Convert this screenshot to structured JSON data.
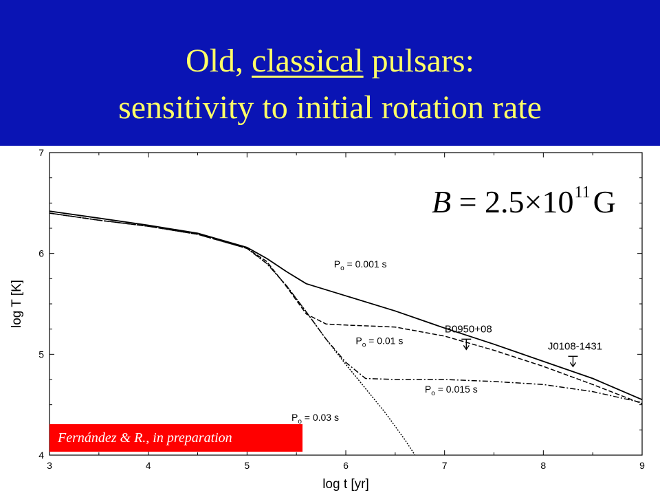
{
  "header": {
    "title_line1_pre": "Old, ",
    "title_line1_underlined": "classical",
    "title_line1_post": " pulsars:",
    "title_line2": "sensitivity to initial rotation rate"
  },
  "formula": {
    "symbol": "B",
    "equals": " = 2.5×10",
    "exponent": "11",
    "unit": "G"
  },
  "credit": "Fernández & R., in preparation",
  "colors": {
    "banner": "#0a14b4",
    "title": "#ffff66",
    "credit_bg": "#ff0000",
    "credit_text": "#ffffff"
  },
  "chart_data": {
    "type": "line",
    "xlabel": "log t [yr]",
    "ylabel": "log T [K]",
    "xlim": [
      3,
      9
    ],
    "ylim": [
      4,
      7
    ],
    "x_ticks": [
      3,
      4,
      5,
      6,
      7,
      8,
      9
    ],
    "y_ticks": [
      4,
      5,
      6,
      7
    ],
    "grid": false,
    "series": [
      {
        "name": "Po = 0.001 s",
        "style": "solid",
        "x": [
          3,
          3.5,
          4,
          4.5,
          5,
          5.2,
          5.4,
          5.6,
          6,
          6.5,
          7,
          7.5,
          8,
          8.5,
          9
        ],
        "y": [
          6.42,
          6.35,
          6.28,
          6.2,
          6.06,
          5.95,
          5.82,
          5.7,
          5.58,
          5.43,
          5.26,
          5.1,
          4.93,
          4.76,
          4.55
        ]
      },
      {
        "name": "Po = 0.01 s",
        "style": "dashed",
        "x": [
          3,
          3.5,
          4,
          4.5,
          5,
          5.2,
          5.4,
          5.6,
          5.8,
          6,
          6.5,
          7,
          7.5,
          8,
          8.5,
          9
        ],
        "y": [
          6.4,
          6.33,
          6.27,
          6.19,
          6.05,
          5.92,
          5.67,
          5.4,
          5.3,
          5.29,
          5.27,
          5.18,
          5.04,
          4.88,
          4.7,
          4.51
        ]
      },
      {
        "name": "Po = 0.015 s",
        "style": "dashdot",
        "x": [
          3,
          3.5,
          4,
          4.5,
          5,
          5.2,
          5.4,
          5.6,
          5.8,
          6,
          6.2,
          6.5,
          7,
          7.5,
          8,
          8.5,
          9
        ],
        "y": [
          6.4,
          6.33,
          6.27,
          6.19,
          6.05,
          5.9,
          5.68,
          5.42,
          5.15,
          4.92,
          4.76,
          4.75,
          4.75,
          4.73,
          4.7,
          4.63,
          4.52
        ]
      },
      {
        "name": "Po = 0.03 s",
        "style": "dotted",
        "x": [
          3,
          3.5,
          4,
          4.5,
          5,
          5.2,
          5.4,
          5.6,
          5.8,
          6,
          6.2,
          6.4,
          6.6,
          6.7
        ],
        "y": [
          6.4,
          6.33,
          6.27,
          6.19,
          6.05,
          5.9,
          5.68,
          5.42,
          5.15,
          4.9,
          4.66,
          4.42,
          4.15,
          4.0
        ]
      }
    ],
    "curve_labels": [
      {
        "text": "Po = 0.001 s",
        "x": 5.88,
        "y": 5.86
      },
      {
        "text": "Po = 0.01 s",
        "x": 6.1,
        "y": 5.1
      },
      {
        "text": "Po = 0.015 s",
        "x": 6.8,
        "y": 4.62
      },
      {
        "text": "Po = 0.03 s",
        "x": 5.45,
        "y": 4.34
      }
    ],
    "upper_limits": [
      {
        "name": "B0950+08",
        "x": 7.22,
        "y": 5.15
      },
      {
        "name": "J0108-1431",
        "x": 8.3,
        "y": 4.98
      }
    ]
  }
}
